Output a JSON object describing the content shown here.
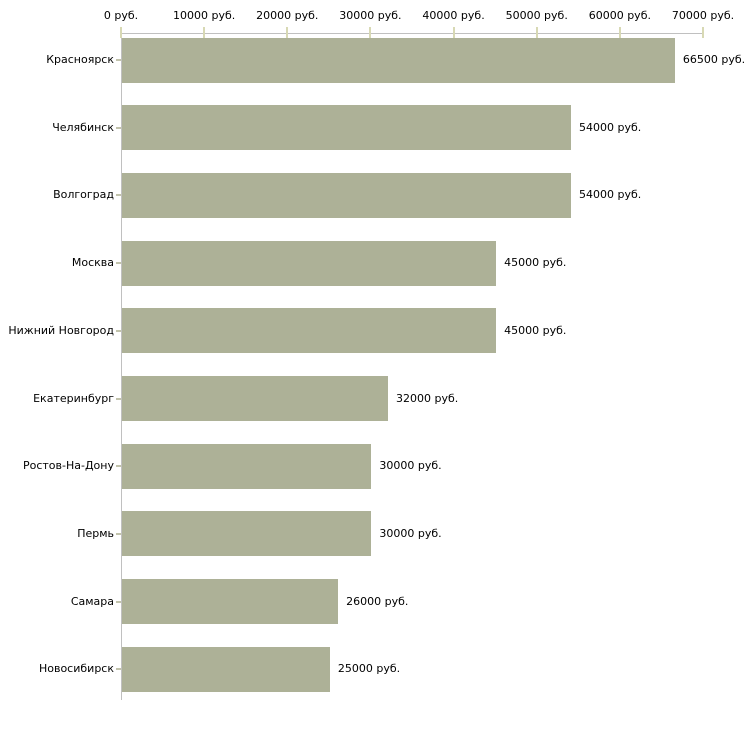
{
  "chart_data": {
    "type": "bar",
    "orientation": "horizontal",
    "title": "",
    "xlabel": "",
    "ylabel": "",
    "grid": false,
    "legend": false,
    "categories": [
      "Красноярск",
      "Челябинск",
      "Волгоград",
      "Москва",
      "Нижний Новгород",
      "Екатеринбург",
      "Ростов-На-Дону",
      "Пермь",
      "Самара",
      "Новосибирск"
    ],
    "values": [
      66500,
      54000,
      54000,
      45000,
      45000,
      32000,
      30000,
      30000,
      26000,
      25000
    ],
    "value_labels": [
      "66500 руб.",
      "54000 руб.",
      "54000 руб.",
      "45000 руб.",
      "45000 руб.",
      "32000 руб.",
      "30000 руб.",
      "30000 руб.",
      "26000 руб.",
      "25000 руб."
    ],
    "x_axis": {
      "position": "top",
      "range": [
        0,
        70000
      ],
      "ticks": [
        0,
        10000,
        20000,
        30000,
        40000,
        50000,
        60000,
        70000
      ],
      "tick_labels": [
        "0 руб.",
        "10000 руб.",
        "20000 руб.",
        "30000 руб.",
        "40000 руб.",
        "50000 руб.",
        "60000 руб.",
        "70000 руб."
      ]
    },
    "colors": {
      "bar": "#adb197",
      "axis": "#c0c0c0",
      "x_tick": "#d8d9b4",
      "y_tick": "#c2c3ac",
      "text": "#000000",
      "background": "#ffffff"
    }
  }
}
